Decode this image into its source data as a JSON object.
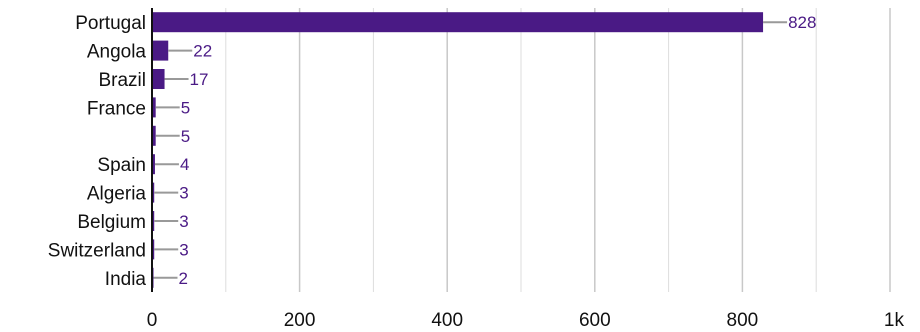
{
  "chart_data": {
    "type": "bar",
    "orientation": "horizontal",
    "categories": [
      "Portugal",
      "Angola",
      "Brazil",
      "France",
      "",
      "Spain",
      "Algeria",
      "Belgium",
      "Switzerland",
      "India"
    ],
    "values": [
      828,
      22,
      17,
      5,
      5,
      4,
      3,
      3,
      3,
      2
    ],
    "xlim": [
      0,
      1000
    ],
    "x_ticks": [
      0,
      200,
      400,
      600,
      800,
      1000
    ],
    "x_tick_labels": [
      "0",
      "200",
      "400",
      "600",
      "800",
      "1k"
    ],
    "grid": "vertical",
    "data_labels": true,
    "colors": {
      "bar": "#4a1a85",
      "label": "#4a1a85",
      "leader": "#999999",
      "grid": "#c8c8c8",
      "axis": "#111111"
    }
  }
}
